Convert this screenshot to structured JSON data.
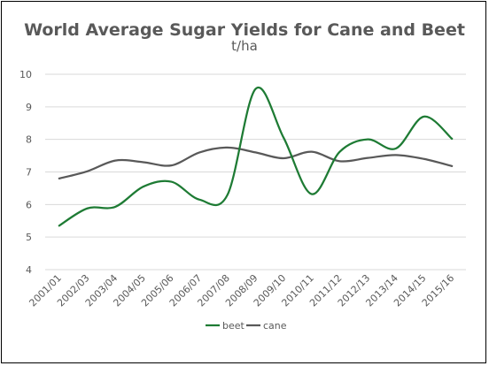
{
  "chart_data": {
    "type": "line",
    "title": "World Average Sugar Yields for Cane and Beet",
    "subtitle": "t/ha",
    "xlabel": "",
    "ylabel": "",
    "categories": [
      "2001/01",
      "2002/03",
      "2003/04",
      "2004/05",
      "2005/06",
      "2006/07",
      "2007/08",
      "2008/09",
      "2009/10",
      "2010/11",
      "2011/12",
      "2012/13",
      "2013/14",
      "2014/15",
      "2015/16"
    ],
    "ylim": [
      4,
      10
    ],
    "yticks": [
      4,
      5,
      6,
      7,
      8,
      9,
      10
    ],
    "grid": true,
    "legend_position": "bottom",
    "series": [
      {
        "name": "beet",
        "color": "#1e7b34",
        "values": [
          5.35,
          5.88,
          5.93,
          6.55,
          6.7,
          6.15,
          6.3,
          9.55,
          8.05,
          6.32,
          7.62,
          8.0,
          7.72,
          8.7,
          8.02
        ]
      },
      {
        "name": "cane",
        "color": "#595959",
        "values": [
          6.8,
          7.02,
          7.35,
          7.3,
          7.2,
          7.6,
          7.75,
          7.6,
          7.42,
          7.62,
          7.33,
          7.43,
          7.52,
          7.4,
          7.18
        ]
      }
    ]
  }
}
